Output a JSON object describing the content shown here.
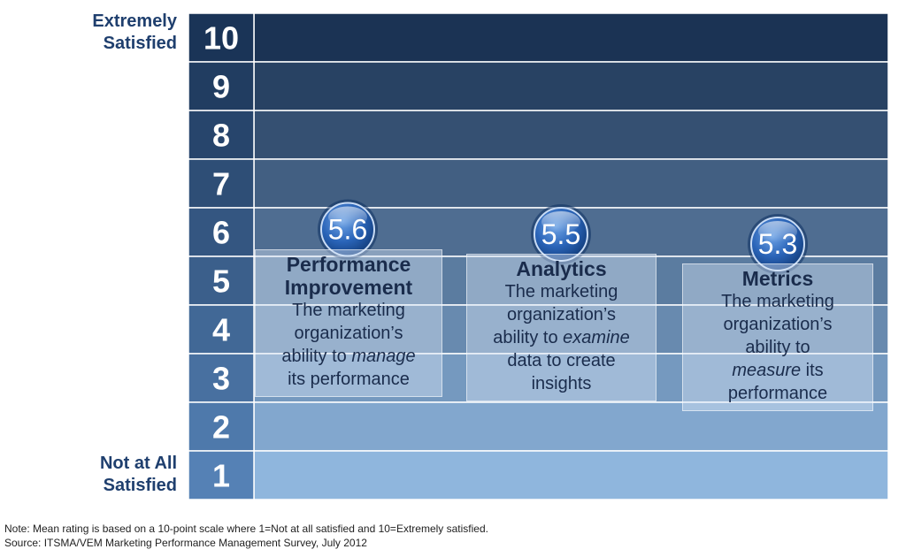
{
  "chart_data": {
    "type": "bar",
    "scale": {
      "min": 1,
      "max": 10,
      "ticks": [
        1,
        2,
        3,
        4,
        5,
        6,
        7,
        8,
        9,
        10
      ]
    },
    "top_label": "Extremely\nSatisfied",
    "bottom_label": "Not at All\nSatisfied",
    "items": [
      {
        "value": 5.6,
        "value_label": "5.6",
        "title": "Performance\nImprovement",
        "desc_before": "The marketing\norganization’s\nability to ",
        "desc_emph": "manage",
        "desc_after": "\nits performance"
      },
      {
        "value": 5.5,
        "value_label": "5.5",
        "title": "Analytics",
        "desc_before": "The marketing\norganization’s\nability to ",
        "desc_emph": "examine",
        "desc_after": "\ndata to create\ninsights"
      },
      {
        "value": 5.3,
        "value_label": "5.3",
        "title": "Metrics",
        "desc_before": "The marketing\norganization’s\nability to\n",
        "desc_emph": "measure",
        "desc_after": " its\nperformance"
      }
    ]
  },
  "footer": {
    "note": "Note: Mean rating is based on a 10-point scale where 1=Not at all satisfied and 10=Extremely satisfied.",
    "source": "Source: ITSMA/VEM Marketing Performance Management Survey, July 2012"
  },
  "colors": {
    "band_top": "#1b3354",
    "band_bottom": "#8fb6dd",
    "axis_cell": "#1a3457",
    "text_dark": "#1a2c4c"
  }
}
